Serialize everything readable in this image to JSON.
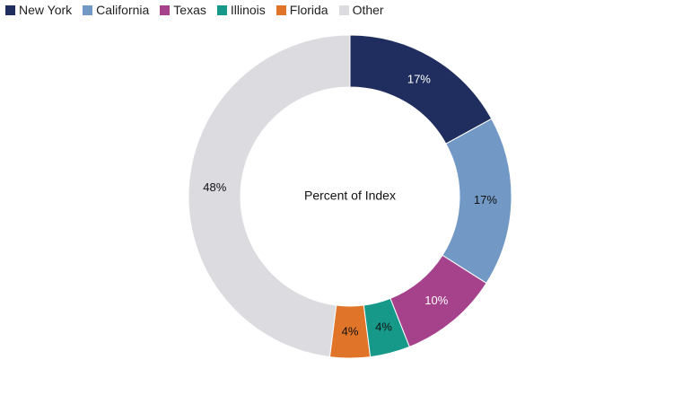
{
  "chart_data": {
    "type": "pie",
    "donut": true,
    "center_text": "Percent of Index",
    "legend_placement": "top-left",
    "slices": [
      {
        "name": "New York",
        "value": 17,
        "label": "17%",
        "color": "#1f2e5e",
        "label_color": "#ffffff"
      },
      {
        "name": "California",
        "value": 17,
        "label": "17%",
        "color": "#7298c5",
        "label_color": "#111111"
      },
      {
        "name": "Texas",
        "value": 10,
        "label": "10%",
        "color": "#a5428b",
        "label_color": "#ffffff"
      },
      {
        "name": "Illinois",
        "value": 4,
        "label": "4%",
        "color": "#17998a",
        "label_color": "#111111"
      },
      {
        "name": "Florida",
        "value": 4,
        "label": "4%",
        "color": "#e07428",
        "label_color": "#111111"
      },
      {
        "name": "Other",
        "value": 48,
        "label": "48%",
        "color": "#dcdbe0",
        "label_color": "#111111"
      }
    ]
  }
}
